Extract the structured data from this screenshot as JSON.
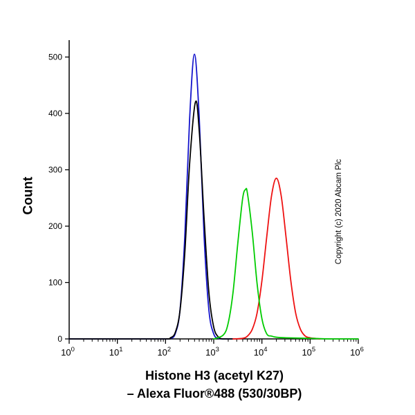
{
  "title": {
    "line1": "Histone H3 (acetyl K27)",
    "line2": "– Alexa Fluor®488 (530/30BP)"
  },
  "copyright": "Copyright (c) 2020 Abcam Plc",
  "chart_data": {
    "type": "line",
    "subtype": "flow-cytometry-histogram",
    "title": "Histone H3 (acetyl K27) – Alexa Fluor®488 (530/30BP)",
    "xlabel": "",
    "ylabel": "Count",
    "x_scale": "log10",
    "xlim_exponents": [
      0,
      6
    ],
    "ylim": [
      0,
      530
    ],
    "x_tick_exponents": [
      0,
      1,
      2,
      3,
      4,
      5,
      6
    ],
    "y_ticks": [
      0,
      100,
      200,
      300,
      400,
      500
    ],
    "grid": false,
    "legend": "none",
    "series": [
      {
        "name": "blue",
        "color": "#1414cc",
        "peak_x_log10": 2.6,
        "peak_count": 505,
        "points": [
          [
            0,
            0
          ],
          [
            1.0,
            0
          ],
          [
            2.0,
            0
          ],
          [
            2.1,
            1
          ],
          [
            2.2,
            9
          ],
          [
            2.3,
            51
          ],
          [
            2.4,
            182
          ],
          [
            2.5,
            391
          ],
          [
            2.6,
            505
          ],
          [
            2.7,
            391
          ],
          [
            2.8,
            182
          ],
          [
            2.9,
            51
          ],
          [
            3.0,
            9
          ],
          [
            3.1,
            1
          ],
          [
            3.2,
            0
          ],
          [
            3.4,
            0
          ]
        ]
      },
      {
        "name": "black",
        "color": "#000000",
        "peak_x_log10": 2.62,
        "peak_count": 420,
        "points": [
          [
            0,
            0
          ],
          [
            1.0,
            0
          ],
          [
            2.0,
            0
          ],
          [
            2.1,
            2
          ],
          [
            2.2,
            11
          ],
          [
            2.3,
            50
          ],
          [
            2.4,
            153
          ],
          [
            2.5,
            311
          ],
          [
            2.62,
            420
          ],
          [
            2.7,
            368
          ],
          [
            2.8,
            214
          ],
          [
            2.9,
            82
          ],
          [
            3.0,
            21
          ],
          [
            3.1,
            3
          ],
          [
            3.2,
            0
          ],
          [
            3.4,
            0
          ]
        ]
      },
      {
        "name": "red",
        "color": "#ee1111",
        "peak_x_log10": 4.3,
        "peak_count": 285,
        "points": [
          [
            3.4,
            0
          ],
          [
            3.6,
            1
          ],
          [
            3.7,
            5
          ],
          [
            3.8,
            17
          ],
          [
            3.9,
            46
          ],
          [
            4.0,
            103
          ],
          [
            4.1,
            181
          ],
          [
            4.2,
            254
          ],
          [
            4.3,
            285
          ],
          [
            4.4,
            254
          ],
          [
            4.5,
            181
          ],
          [
            4.6,
            103
          ],
          [
            4.7,
            46
          ],
          [
            4.8,
            17
          ],
          [
            4.9,
            5
          ],
          [
            5.0,
            2
          ],
          [
            5.1,
            1
          ],
          [
            5.2,
            0
          ]
        ]
      },
      {
        "name": "green",
        "color": "#00cc00",
        "peak_x_log10": 3.66,
        "peak_count": 265,
        "points": [
          [
            3.0,
            0
          ],
          [
            3.2,
            7
          ],
          [
            3.3,
            28
          ],
          [
            3.4,
            82
          ],
          [
            3.5,
            170
          ],
          [
            3.6,
            249
          ],
          [
            3.66,
            265
          ],
          [
            3.7,
            258
          ],
          [
            3.8,
            189
          ],
          [
            3.9,
            98
          ],
          [
            4.0,
            36
          ],
          [
            4.1,
            9
          ],
          [
            4.2,
            5
          ],
          [
            4.3,
            3
          ],
          [
            4.5,
            2
          ],
          [
            5.0,
            1
          ],
          [
            5.5,
            0
          ],
          [
            6.0,
            0
          ]
        ]
      }
    ]
  }
}
